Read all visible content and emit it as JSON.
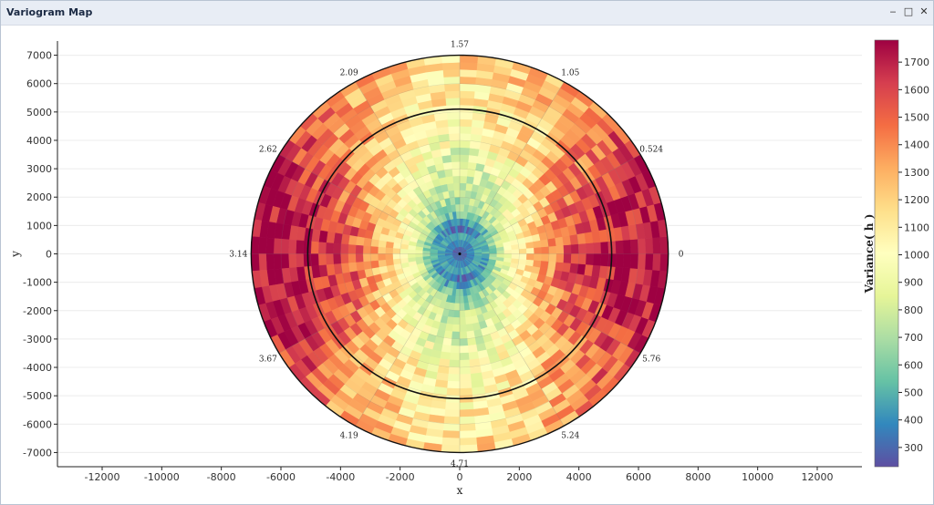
{
  "window": {
    "title": "Variogram Map",
    "minimize_icon": "minimize-icon",
    "maximize_icon": "maximize-icon",
    "close_icon": "close-icon",
    "minimize_glyph": "‒",
    "maximize_glyph": "□",
    "close_glyph": "✕"
  },
  "chart_data": {
    "type": "heatmap",
    "subtype": "polar-variogram-map",
    "title": "",
    "xlabel": "x",
    "ylabel": "y",
    "colorbar_label": "Variance( h )",
    "xlim": [
      -13500,
      13500
    ],
    "ylim": [
      -7500,
      7500
    ],
    "x_ticks": [
      "-12000",
      "-10000",
      "-8000",
      "-6000",
      "-4000",
      "-2000",
      "0",
      "2000",
      "4000",
      "6000",
      "8000",
      "10000",
      "12000"
    ],
    "y_ticks": [
      "7000",
      "6000",
      "5000",
      "4000",
      "3000",
      "2000",
      "1000",
      "0",
      "-1000",
      "-2000",
      "-3000",
      "-4000",
      "-5000",
      "-6000",
      "-7000"
    ],
    "angle_labels": [
      "0",
      "0.524",
      "1.05",
      "1.57",
      "2.09",
      "2.62",
      "3.14",
      "3.67",
      "4.19",
      "4.71",
      "5.24",
      "5.76"
    ],
    "max_lag": 7000,
    "inner_ring_radius": 5100,
    "colorbar_range": [
      230,
      1780
    ],
    "colorbar_ticks": [
      "1700",
      "1600",
      "1500",
      "1400",
      "1300",
      "1200",
      "1100",
      "1000",
      "900",
      "800",
      "700",
      "600",
      "500",
      "400",
      "300"
    ],
    "colormap": [
      "#5e4fa2",
      "#3288bd",
      "#66c2a5",
      "#abdda4",
      "#e6f598",
      "#ffffbf",
      "#fee08b",
      "#fdae61",
      "#f46d43",
      "#d53e4f",
      "#9e0142"
    ],
    "grid": true,
    "variance_by_lag": [
      {
        "lag": 500,
        "variance": 280
      },
      {
        "lag": 1000,
        "variance": 450
      },
      {
        "lag": 1500,
        "variance": 750
      },
      {
        "lag": 2000,
        "variance": 900
      },
      {
        "lag": 2500,
        "variance": 1000
      },
      {
        "lag": 3000,
        "variance": 1100
      },
      {
        "lag": 3500,
        "variance": 1200
      },
      {
        "lag": 4000,
        "variance": 1280
      },
      {
        "lag": 4500,
        "variance": 1330
      },
      {
        "lag": 5000,
        "variance": 1360
      },
      {
        "lag": 5500,
        "variance": 1400
      },
      {
        "lag": 6000,
        "variance": 1430
      },
      {
        "lag": 6500,
        "variance": 1460
      },
      {
        "lag": 7000,
        "variance": 1480
      }
    ],
    "anisotropy": {
      "high_variance_direction_rad": 0.0,
      "low_variance_direction_rad": 1.57
    }
  }
}
